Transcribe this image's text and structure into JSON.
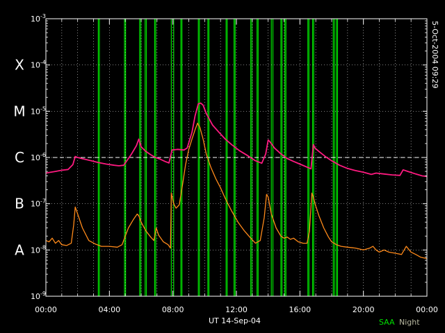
{
  "chart_data": {
    "type": "line",
    "xlabel": "UT 14-Sep-04",
    "timestamp": "5-Oct-2004 09:29",
    "x_ticks": [
      "00:00",
      "04:00",
      "08:00",
      "12:00",
      "16:00",
      "20:00",
      "00:00"
    ],
    "xlim": [
      0,
      24
    ],
    "ylim": [
      1e-09,
      0.001
    ],
    "yscale": "log",
    "y_ticks": [
      {
        "base": "10",
        "exp": "-9"
      },
      {
        "base": "10",
        "exp": "-8"
      },
      {
        "base": "10",
        "exp": "-7"
      },
      {
        "base": "10",
        "exp": "-6"
      },
      {
        "base": "10",
        "exp": "-5"
      },
      {
        "base": "10",
        "exp": "-4"
      },
      {
        "base": "10",
        "exp": "-3"
      }
    ],
    "flare_classes": [
      {
        "label": "A",
        "value": 1e-08
      },
      {
        "label": "B",
        "value": 1e-07
      },
      {
        "label": "C",
        "value": 1e-06
      },
      {
        "label": "M",
        "value": 1e-05
      },
      {
        "label": "X",
        "value": 0.0001
      }
    ],
    "threshold_line": 1e-06,
    "grid": true,
    "legend": {
      "saa": "SAA",
      "night": "Night",
      "placement": "bottom-right"
    },
    "colors": {
      "long_channel": "#ff1a80",
      "short_channel": "#ff8a1a",
      "saa": "#00e000",
      "night": "#b8b8a0",
      "grid": "#ffffff",
      "threshold": "#ffffff"
    },
    "saa_hours": [
      3.3,
      3.37,
      4.95,
      5.02,
      5.9,
      5.98,
      6.25,
      6.33,
      6.85,
      6.92,
      7.9,
      8.05,
      8.5,
      8.57,
      9.6,
      9.67,
      10.2,
      10.27,
      11.35,
      11.42,
      11.85,
      11.92,
      12.9,
      12.98,
      13.3,
      13.37,
      14.2,
      14.3,
      14.8,
      14.87,
      15.05,
      15.12,
      16.5,
      16.57,
      16.8,
      16.87,
      18.1,
      18.18,
      18.3,
      18.37
    ],
    "series": [
      {
        "x": [
          0.0,
          0.3,
          0.6,
          1.0,
          1.4,
          1.7,
          1.85,
          2.0,
          2.3,
          2.8,
          3.3,
          3.8,
          4.3,
          4.6,
          4.9,
          5.1,
          5.4,
          5.7,
          5.85,
          6.0,
          6.3,
          6.6,
          6.9,
          7.2,
          7.5,
          7.75,
          7.85,
          7.95,
          8.3,
          8.7,
          8.9,
          9.2,
          9.4,
          9.6,
          9.75,
          9.9,
          10.1,
          10.5,
          10.9,
          11.3,
          11.7,
          12.2,
          12.7,
          13.2,
          13.6,
          13.85,
          14.0,
          14.15,
          14.4,
          14.8,
          15.2,
          15.6,
          16.0,
          16.4,
          16.7,
          16.85,
          16.95,
          17.2,
          17.6,
          18.0,
          18.5,
          19.0,
          19.5,
          20.0,
          20.3,
          20.5,
          20.8,
          21.3,
          21.8,
          22.3,
          22.5,
          22.8,
          23.3,
          23.7,
          24.0
        ],
        "y": [
          4.6e-07,
          4.8e-07,
          5e-07,
          5.3e-07,
          5.5e-07,
          7e-07,
          1.05e-06,
          1e-06,
          9.4e-07,
          8.6e-07,
          7.8e-07,
          7.2e-07,
          6.8e-07,
          6.6e-07,
          6.8e-07,
          8.5e-07,
          1.2e-06,
          1.8e-06,
          2.5e-06,
          1.7e-06,
          1.35e-06,
          1.15e-06,
          1e-06,
          9.2e-07,
          8.2e-07,
          7.6e-07,
          1.05e-06,
          1.45e-06,
          1.5e-06,
          1.45e-06,
          1.6e-06,
          3.5e-06,
          8e-06,
          1.45e-05,
          1.5e-05,
          1.35e-05,
          9e-06,
          5e-06,
          3.5e-06,
          2.5e-06,
          1.9e-06,
          1.4e-06,
          1.1e-06,
          8.5e-07,
          7.5e-07,
          1.2e-06,
          2.4e-06,
          2.1e-06,
          1.6e-06,
          1.2e-06,
          9.5e-07,
          8.2e-07,
          7.2e-07,
          6.3e-07,
          5.7e-07,
          1.9e-06,
          1.6e-06,
          1.35e-06,
          1.05e-06,
          8.5e-07,
          6.8e-07,
          5.8e-07,
          5.2e-07,
          4.8e-07,
          4.5e-07,
          4.3e-07,
          4.6e-07,
          4.4e-07,
          4.2e-07,
          4.1e-07,
          5.4e-07,
          5e-07,
          4.4e-07,
          4e-07,
          3.9e-07
        ]
      },
      {
        "x": [
          0.0,
          0.2,
          0.4,
          0.6,
          0.8,
          1.0,
          1.3,
          1.6,
          1.75,
          1.85,
          2.0,
          2.3,
          2.7,
          3.1,
          3.5,
          4.0,
          4.5,
          4.8,
          5.0,
          5.2,
          5.5,
          5.75,
          5.85,
          6.0,
          6.3,
          6.6,
          6.8,
          6.95,
          7.1,
          7.4,
          7.7,
          7.85,
          7.9,
          8.05,
          8.2,
          8.4,
          8.6,
          8.8,
          9.0,
          9.2,
          9.4,
          9.55,
          9.7,
          9.9,
          10.1,
          10.4,
          10.7,
          11.0,
          11.3,
          11.7,
          12.1,
          12.5,
          12.9,
          13.2,
          13.5,
          13.75,
          13.9,
          14.0,
          14.2,
          14.5,
          14.8,
          15.0,
          15.2,
          15.4,
          15.6,
          15.9,
          16.2,
          16.45,
          16.6,
          16.75,
          16.85,
          16.95,
          17.2,
          17.5,
          17.8,
          18.0,
          18.3,
          18.6,
          19.0,
          19.5,
          20.0,
          20.4,
          20.6,
          20.8,
          21.0,
          21.3,
          21.6,
          22.0,
          22.4,
          22.7,
          23.0,
          23.3,
          23.6,
          24.0
        ],
        "y": [
          1.6e-08,
          1.5e-08,
          1.8e-08,
          1.4e-08,
          1.6e-08,
          1.3e-08,
          1.25e-08,
          1.4e-08,
          3.5e-08,
          8.5e-08,
          6e-08,
          3e-08,
          1.6e-08,
          1.35e-08,
          1.2e-08,
          1.2e-08,
          1.15e-08,
          1.3e-08,
          2e-08,
          3e-08,
          4.5e-08,
          6e-08,
          5.5e-08,
          4e-08,
          2.6e-08,
          1.9e-08,
          1.6e-08,
          3e-08,
          2.1e-08,
          1.5e-08,
          1.3e-08,
          1.1e-08,
          1.7e-07,
          1e-07,
          8e-08,
          9.5e-08,
          2.5e-07,
          7e-07,
          1.5e-06,
          2.5e-06,
          4e-06,
          5.5e-06,
          4.5e-06,
          2.5e-06,
          1.2e-06,
          6e-07,
          3.5e-07,
          2.2e-07,
          1.3e-07,
          7e-08,
          4e-08,
          2.6e-08,
          1.8e-08,
          1.4e-08,
          1.6e-08,
          5e-08,
          1.6e-07,
          1.4e-07,
          6e-08,
          3e-08,
          2e-08,
          1.8e-08,
          1.9e-08,
          1.7e-08,
          1.8e-08,
          1.5e-08,
          1.4e-08,
          1.4e-08,
          2.5e-08,
          1.7e-07,
          1.4e-07,
          1e-07,
          5.5e-08,
          3e-08,
          1.9e-08,
          1.5e-08,
          1.3e-08,
          1.2e-08,
          1.15e-08,
          1.1e-08,
          1e-08,
          1.1e-08,
          1.2e-08,
          1e-08,
          9e-09,
          1e-08,
          9e-09,
          8.5e-09,
          8e-09,
          1.2e-08,
          9e-09,
          8e-09,
          7e-09,
          6.5e-09
        ]
      }
    ]
  }
}
